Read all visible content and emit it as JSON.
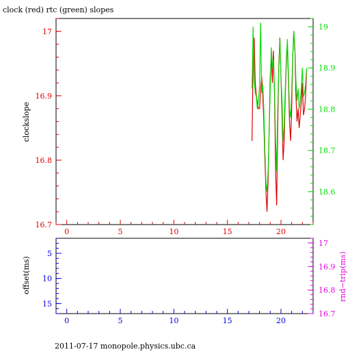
{
  "chart_data": [
    {
      "type": "line",
      "title": "clock (red) rtc (green) slopes",
      "ylabel": "clockslope",
      "y2label": "",
      "xlim": [
        -1,
        23
      ],
      "ylim": [
        16.7,
        17.02
      ],
      "y2lim": [
        18.52,
        19.02
      ],
      "xticks": [
        "0",
        "5",
        "10",
        "15",
        "20"
      ],
      "yticks": [
        "16.7",
        "16.8",
        "16.9",
        "17"
      ],
      "y2ticks": [
        "18.6",
        "18.7",
        "18.8",
        "18.9",
        "19"
      ],
      "colors": {
        "clock": "#dd0000",
        "rtc": "#00dd00",
        "axis_left": "#dd0000",
        "axis_right": "#00dd00",
        "axis_x": "#dd0000"
      },
      "series": [
        {
          "name": "clock",
          "axis": "left",
          "x": [
            17.3,
            17.4,
            17.5,
            17.6,
            17.7,
            17.8,
            17.9,
            18.0,
            18.1,
            18.2,
            18.3,
            18.4,
            18.5,
            18.6,
            18.7,
            18.8,
            18.9,
            19.0,
            19.1,
            19.2,
            19.3,
            19.4,
            19.5,
            19.6,
            19.7,
            19.8,
            19.9,
            20.0,
            20.1,
            20.2,
            20.3,
            20.4,
            20.5,
            20.6,
            20.7,
            20.8,
            20.9,
            21.0,
            21.1,
            21.2,
            21.3,
            21.4,
            21.5,
            21.6,
            21.7,
            21.8,
            21.9,
            22.0,
            22.1,
            22.2,
            22.3,
            22.4
          ],
          "values": [
            16.83,
            16.96,
            16.99,
            16.92,
            16.9,
            16.89,
            16.88,
            16.88,
            16.91,
            16.93,
            16.9,
            16.86,
            16.8,
            16.75,
            16.72,
            16.77,
            16.85,
            16.93,
            16.96,
            16.92,
            16.97,
            16.9,
            16.78,
            16.73,
            16.85,
            16.95,
            16.99,
            16.93,
            16.87,
            16.8,
            16.83,
            16.9,
            16.95,
            16.98,
            16.92,
            16.86,
            16.83,
            16.88,
            16.96,
            17.0,
            16.97,
            16.9,
            16.86,
            16.88,
            16.85,
            16.87,
            16.89,
            16.92,
            16.87,
            16.88,
            16.9,
            16.94
          ]
        },
        {
          "name": "rtc",
          "axis": "right",
          "x": [
            17.3,
            17.4,
            17.5,
            17.6,
            17.7,
            17.8,
            17.9,
            18.0,
            18.1,
            18.2,
            18.3,
            18.4,
            18.5,
            18.6,
            18.7,
            18.8,
            18.9,
            19.0,
            19.1,
            19.2,
            19.3,
            19.4,
            19.5,
            19.6,
            19.7,
            19.8,
            19.9,
            20.0,
            20.1,
            20.2,
            20.3,
            20.4,
            20.5,
            20.6,
            20.7,
            20.8,
            20.9,
            21.0,
            21.1,
            21.2,
            21.3,
            21.4,
            21.5,
            21.6,
            21.7,
            21.8,
            21.9,
            22.0,
            22.1,
            22.2,
            22.3,
            22.4
          ],
          "values": [
            18.85,
            19.0,
            18.87,
            18.84,
            18.83,
            18.8,
            18.82,
            18.86,
            19.01,
            18.84,
            18.86,
            18.8,
            18.7,
            18.62,
            18.6,
            18.65,
            18.75,
            18.85,
            18.95,
            18.9,
            18.92,
            18.85,
            18.72,
            18.65,
            18.8,
            18.9,
            18.97,
            18.88,
            18.82,
            18.72,
            18.76,
            18.85,
            18.92,
            18.97,
            18.88,
            18.8,
            18.78,
            18.84,
            18.93,
            18.99,
            18.95,
            18.87,
            18.82,
            18.85,
            18.8,
            18.82,
            18.85,
            18.9,
            18.83,
            18.84,
            18.86,
            18.9
          ]
        }
      ]
    },
    {
      "type": "line",
      "ylabel": "offset(ms)",
      "y2label": "rnd−trip(ms)",
      "xlim": [
        -1,
        23
      ],
      "ylim": [
        17,
        2
      ],
      "y2lim": [
        16.7,
        17.02
      ],
      "xticks": [
        "0",
        "5",
        "10",
        "15",
        "20"
      ],
      "yticks": [
        "5",
        "10",
        "15"
      ],
      "y2ticks": [
        "16.7",
        "16.8",
        "16.9",
        "17"
      ],
      "colors": {
        "axis_left": "#0000dd",
        "axis_right": "#dd00dd",
        "axis_x": "#0000dd"
      },
      "series": []
    }
  ],
  "footer": {
    "text": "2011-07-17 monopole.physics.ubc.ca"
  }
}
